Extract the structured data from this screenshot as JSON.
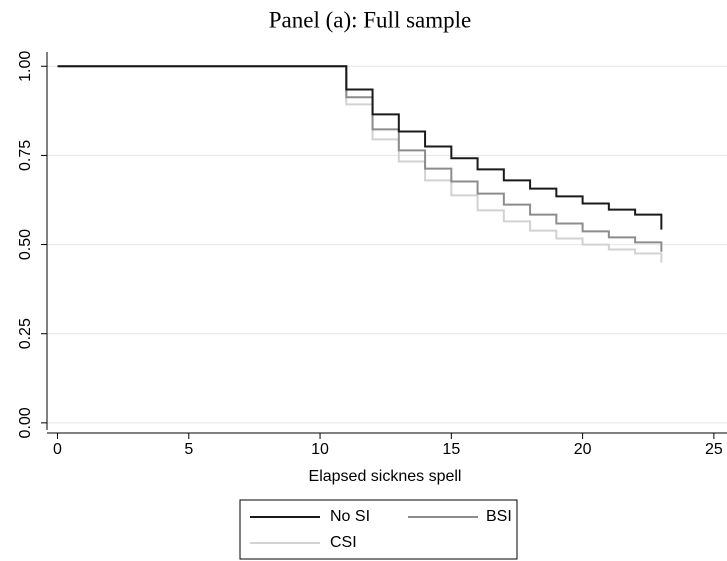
{
  "chart_data": {
    "type": "step",
    "title": "Panel (a): Full sample",
    "x_label": "Elapsed sicknes spell",
    "x": [
      0,
      11,
      12,
      13,
      14,
      15,
      16,
      17,
      18,
      19,
      20,
      21,
      22,
      23
    ],
    "series": [
      {
        "name": "No SI",
        "color": "#1a1a1a",
        "values": [
          1.0,
          0.935,
          0.865,
          0.817,
          0.775,
          0.742,
          0.711,
          0.68,
          0.657,
          0.635,
          0.615,
          0.598,
          0.584,
          0.542
        ]
      },
      {
        "name": "BSI",
        "color": "#8c8c8c",
        "values": [
          1.0,
          0.913,
          0.823,
          0.764,
          0.713,
          0.677,
          0.643,
          0.612,
          0.584,
          0.559,
          0.537,
          0.52,
          0.506,
          0.48
        ]
      },
      {
        "name": "CSI",
        "color": "#d2d2d2",
        "values": [
          1.0,
          0.893,
          0.795,
          0.733,
          0.68,
          0.638,
          0.596,
          0.565,
          0.539,
          0.517,
          0.5,
          0.486,
          0.475,
          0.449
        ]
      }
    ],
    "xlim": [
      -0.4,
      25.5
    ],
    "xticks": [
      0,
      5,
      10,
      15,
      20,
      25
    ],
    "ylim": [
      -0.02,
      1.04
    ],
    "yticks": [
      {
        "value": 0,
        "label": "0.00"
      },
      {
        "value": 0.25,
        "label": "0.25"
      },
      {
        "value": 0.5,
        "label": "0.50"
      },
      {
        "value": 0.75,
        "label": "0.75"
      },
      {
        "value": 1,
        "label": "1.00"
      }
    ],
    "grid": true
  }
}
